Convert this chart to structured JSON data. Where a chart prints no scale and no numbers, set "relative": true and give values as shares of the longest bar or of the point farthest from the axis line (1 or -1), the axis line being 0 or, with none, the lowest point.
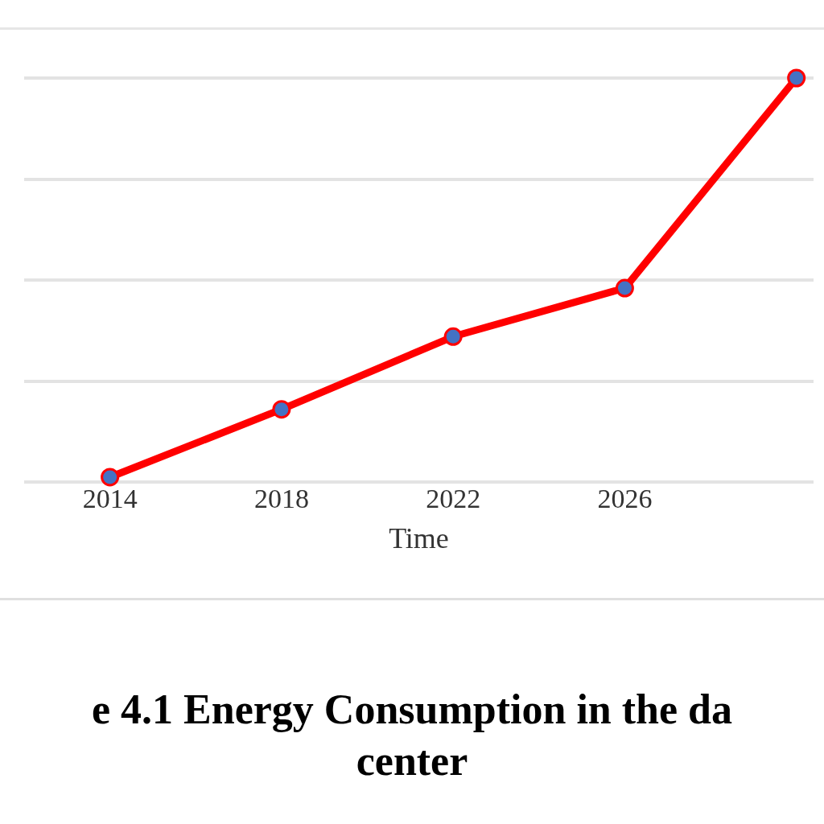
{
  "chart_data": {
    "type": "line",
    "title": "e 4.1 Energy Consumption in the da",
    "subtitle": "center",
    "xlabel": "Time",
    "relative": true,
    "x": [
      2014,
      2018,
      2022,
      2026,
      2030
    ],
    "series": [
      {
        "color": "#ff0000",
        "values": [
          0.012,
          0.18,
          0.36,
          0.48,
          1
        ]
      }
    ],
    "xlim": [
      2012,
      2030.4
    ],
    "xticks": [
      2014,
      2018,
      2022,
      2026
    ],
    "grid": "y",
    "marker": "circle",
    "line_style": "solid",
    "legend": false
  }
}
